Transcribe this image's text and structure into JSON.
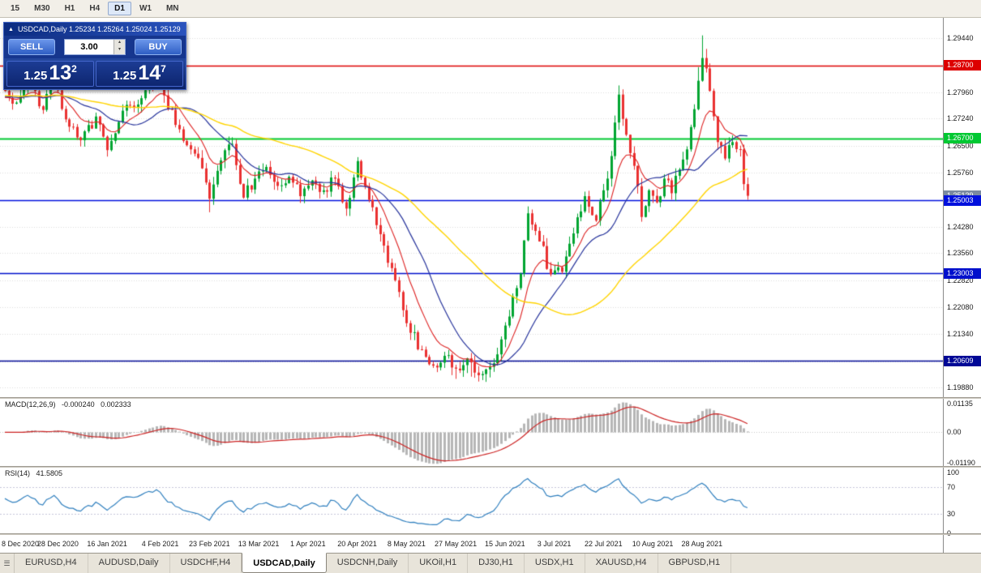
{
  "toolbar": {
    "timeframes": [
      {
        "label": "15",
        "active": false
      },
      {
        "label": "M30",
        "active": false
      },
      {
        "label": "H1",
        "active": false
      },
      {
        "label": "H4",
        "active": false
      },
      {
        "label": "D1",
        "active": true
      },
      {
        "label": "W1",
        "active": false
      },
      {
        "label": "MN",
        "active": false
      }
    ]
  },
  "chart": {
    "title": "USDCAD,Daily 1.25234 1.25264 1.25024 1.25129"
  },
  "trade_panel": {
    "sell_label": "SELL",
    "buy_label": "BUY",
    "lot_size": "3.00",
    "bid": {
      "base": "1.25",
      "pips": "13",
      "pipette": "2"
    },
    "ask": {
      "base": "1.25",
      "pips": "14",
      "pipette": "7"
    }
  },
  "chart_data": {
    "type": "candlestick",
    "symbol": "USDCAD",
    "timeframe": "Daily",
    "current_ohlc": {
      "open": 1.25234,
      "high": 1.25264,
      "low": 1.25024,
      "close": 1.25129
    },
    "price_max": 1.3,
    "price_min": 1.1962,
    "num_days": 197,
    "up_color": "#00a531",
    "down_color": "#ea3131",
    "grid_color": "#dcdcdc",
    "anchors": [
      [
        0,
        1.28
      ],
      [
        3,
        1.2768
      ],
      [
        6,
        1.2828
      ],
      [
        10,
        1.2748
      ],
      [
        13,
        1.2832
      ],
      [
        16,
        1.2722
      ],
      [
        20,
        1.2665
      ],
      [
        24,
        1.273
      ],
      [
        27,
        1.2638
      ],
      [
        30,
        1.2715
      ],
      [
        33,
        1.276
      ],
      [
        36,
        1.278
      ],
      [
        40,
        1.284
      ],
      [
        43,
        1.275
      ],
      [
        46,
        1.2695
      ],
      [
        49,
        1.264
      ],
      [
        52,
        1.2588
      ],
      [
        54,
        1.2505
      ],
      [
        57,
        1.261
      ],
      [
        60,
        1.2655
      ],
      [
        63,
        1.2508
      ],
      [
        66,
        1.256
      ],
      [
        69,
        1.2592
      ],
      [
        72,
        1.254
      ],
      [
        75,
        1.2565
      ],
      [
        78,
        1.2512
      ],
      [
        81,
        1.2555
      ],
      [
        84,
        1.2528
      ],
      [
        87,
        1.256
      ],
      [
        90,
        1.2478
      ],
      [
        93,
        1.2608
      ],
      [
        96,
        1.2502
      ],
      [
        99,
        1.2408
      ],
      [
        102,
        1.2315
      ],
      [
        105,
        1.22
      ],
      [
        107,
        1.2138
      ],
      [
        110,
        1.2092
      ],
      [
        113,
        1.2048
      ],
      [
        116,
        1.2075
      ],
      [
        119,
        1.204
      ],
      [
        122,
        1.2068
      ],
      [
        125,
        1.2022
      ],
      [
        128,
        1.2045
      ],
      [
        131,
        1.212
      ],
      [
        134,
        1.2238
      ],
      [
        136,
        1.23
      ],
      [
        138,
        1.2465
      ],
      [
        141,
        1.2388
      ],
      [
        144,
        1.2298
      ],
      [
        147,
        1.2305
      ],
      [
        150,
        1.241
      ],
      [
        153,
        1.2512
      ],
      [
        156,
        1.2445
      ],
      [
        158,
        1.2528
      ],
      [
        159,
        1.256
      ],
      [
        162,
        1.279
      ],
      [
        164,
        1.268
      ],
      [
        166,
        1.2595
      ],
      [
        168,
        1.2455
      ],
      [
        170,
        1.2528
      ],
      [
        172,
        1.2495
      ],
      [
        174,
        1.256
      ],
      [
        176,
        1.252
      ],
      [
        178,
        1.2585
      ],
      [
        180,
        1.264
      ],
      [
        182,
        1.275
      ],
      [
        184,
        1.289
      ],
      [
        186,
        1.28
      ],
      [
        188,
        1.266
      ],
      [
        190,
        1.2615
      ],
      [
        192,
        1.266
      ],
      [
        194,
        1.264
      ],
      [
        195,
        1.2545
      ],
      [
        196,
        1.2513
      ]
    ],
    "high_overrides": [
      [
        13,
        1.2852
      ],
      [
        40,
        1.2862
      ],
      [
        138,
        1.2484
      ],
      [
        162,
        1.2815
      ],
      [
        183,
        1.2865
      ],
      [
        184,
        1.2952
      ],
      [
        185,
        1.2915
      ]
    ],
    "low_overrides": [
      [
        54,
        1.2468
      ],
      [
        90,
        1.2458
      ],
      [
        119,
        1.2012
      ],
      [
        123,
        1.2018
      ],
      [
        125,
        1.2005
      ],
      [
        127,
        1.201
      ],
      [
        168,
        1.2442
      ],
      [
        196,
        1.2502
      ]
    ],
    "moving_averages": [
      {
        "type": "ema",
        "period": 10,
        "color": "#dd2222",
        "width": 1.1
      },
      {
        "type": "sma",
        "period": 20,
        "color": "#26339b",
        "width": 1.2
      },
      {
        "type": "sma",
        "period": 50,
        "color": "#ffd400",
        "width": 1.4
      }
    ],
    "levels": [
      {
        "price": 1.287,
        "label": "1.28700",
        "color": "#dd0000",
        "line": "solid",
        "width": 1.6
      },
      {
        "price": 1.267,
        "label": "1.26700",
        "color": "#00c832",
        "line": "solid",
        "width": 1.8
      },
      {
        "price": 1.25129,
        "label": "1.25129",
        "color": "#7a8aa0",
        "line": "none",
        "width": 0,
        "current": true
      },
      {
        "price": 1.25003,
        "label": "1.25003",
        "color": "#0010dd",
        "line": "solid",
        "width": 1.5
      },
      {
        "price": 1.23003,
        "label": "1.23003",
        "color": "#0010cc",
        "line": "solid",
        "width": 1.5
      },
      {
        "price": 1.20609,
        "label": "1.20609",
        "color": "#000896",
        "line": "solid",
        "width": 1.4
      }
    ],
    "y_labels": [
      {
        "price": 1.2944,
        "label": "1.29440"
      },
      {
        "price": 1.2796,
        "label": "1.27960"
      },
      {
        "price": 1.2724,
        "label": "1.27240"
      },
      {
        "price": 1.265,
        "label": "1.26500"
      },
      {
        "price": 1.2576,
        "label": "1.25760"
      },
      {
        "price": 1.2428,
        "label": "1.24280"
      },
      {
        "price": 1.2356,
        "label": "1.23560"
      },
      {
        "price": 1.2282,
        "label": "1.22820"
      },
      {
        "price": 1.2208,
        "label": "1.22080"
      },
      {
        "price": 1.2134,
        "label": "1.21340"
      },
      {
        "price": 1.1988,
        "label": "1.19880"
      }
    ],
    "grid_prices": [
      1.2944,
      1.287,
      1.2796,
      1.2724,
      1.265,
      1.2576,
      1.2502,
      1.2428,
      1.2356,
      1.2282,
      1.2208,
      1.2134,
      1.206,
      1.1988
    ],
    "x_labels": [
      {
        "day": 0,
        "label": "8 Dec 2020"
      },
      {
        "day": 14,
        "label": "28 Dec 2020"
      },
      {
        "day": 27,
        "label": "16 Jan 2021"
      },
      {
        "day": 41,
        "label": "4 Feb 2021"
      },
      {
        "day": 54,
        "label": "23 Feb 2021"
      },
      {
        "day": 67,
        "label": "13 Mar 2021"
      },
      {
        "day": 80,
        "label": "1 Apr 2021"
      },
      {
        "day": 93,
        "label": "20 Apr 2021"
      },
      {
        "day": 106,
        "label": "8 May 2021"
      },
      {
        "day": 119,
        "label": "27 May 2021"
      },
      {
        "day": 132,
        "label": "15 Jun 2021"
      },
      {
        "day": 145,
        "label": "3 Jul 2021"
      },
      {
        "day": 158,
        "label": "22 Jul 2021"
      },
      {
        "day": 171,
        "label": "10 Aug 2021"
      },
      {
        "day": 184,
        "label": "28 Aug 2021"
      }
    ]
  },
  "macd_panel": {
    "name": "MACD(12,26,9)",
    "value": "-0.000240",
    "signal_value": "0.002333",
    "max": 0.0125,
    "min": -0.013,
    "hist_color": "#b6b6b6",
    "signal_color": "#cc2222",
    "axis": [
      {
        "v": 0.01135,
        "label": "0.01135"
      },
      {
        "v": 0,
        "label": "0.00"
      },
      {
        "v": -0.0119,
        "label": "-0.01190"
      }
    ]
  },
  "rsi_panel": {
    "name": "RSI(14)",
    "value": "41.5805",
    "line_color": "#2f7fbe",
    "level_lines": [
      70,
      30
    ],
    "axis": [
      {
        "v": 100,
        "label": "100"
      },
      {
        "v": 70,
        "label": "70"
      },
      {
        "v": 30,
        "label": "30"
      },
      {
        "v": 0,
        "label": "0"
      }
    ]
  },
  "tabs": {
    "active_index": 3,
    "items": [
      {
        "label": "EURUSD,H4"
      },
      {
        "label": "AUDUSD,Daily"
      },
      {
        "label": "USDCHF,H4"
      },
      {
        "label": "USDCAD,Daily"
      },
      {
        "label": "USDCNH,Daily"
      },
      {
        "label": "UKOil,H1"
      },
      {
        "label": "DJ30,H1"
      },
      {
        "label": "USDX,H1"
      },
      {
        "label": "XAUUSD,H4"
      },
      {
        "label": "GBPUSD,H1"
      }
    ]
  }
}
